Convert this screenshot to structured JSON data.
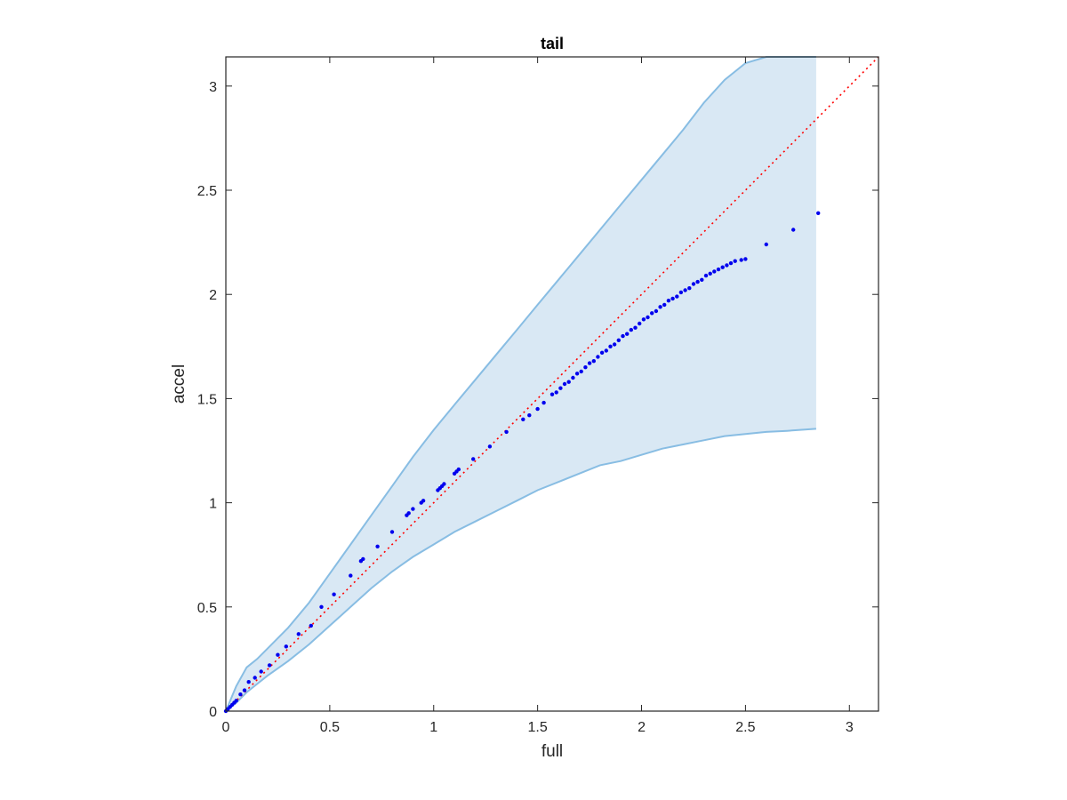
{
  "chart_data": {
    "type": "scatter",
    "title": "tail",
    "xlabel": "full",
    "ylabel": "accel",
    "xlim": [
      0,
      3.14
    ],
    "ylim": [
      0,
      3.14
    ],
    "xticks": [
      "0",
      "0.5",
      "1",
      "1.5",
      "2",
      "2.5",
      "3"
    ],
    "yticks": [
      "0",
      "0.5",
      "1",
      "1.5",
      "2",
      "2.5",
      "3"
    ],
    "grid": false,
    "legend": "none",
    "colors": {
      "band_fill": "#d9e8f4",
      "band_edge": "#88bde3",
      "points": "#0000ee",
      "reference": "#ff0000",
      "axes": "#262626"
    },
    "reference_line": {
      "style": "dotted",
      "x": [
        0,
        3.14
      ],
      "y": [
        0,
        3.14
      ]
    },
    "band": {
      "name": "",
      "x": [
        0,
        0.05,
        0.1,
        0.15,
        0.2,
        0.3,
        0.4,
        0.5,
        0.6,
        0.7,
        0.8,
        0.9,
        1.0,
        1.1,
        1.2,
        1.3,
        1.4,
        1.5,
        1.6,
        1.7,
        1.8,
        1.9,
        2.0,
        2.1,
        2.2,
        2.3,
        2.4,
        2.5,
        2.6,
        2.7,
        2.84
      ],
      "upper": [
        0,
        0.12,
        0.21,
        0.25,
        0.3,
        0.4,
        0.52,
        0.66,
        0.8,
        0.94,
        1.08,
        1.22,
        1.35,
        1.47,
        1.59,
        1.71,
        1.83,
        1.95,
        2.07,
        2.19,
        2.31,
        2.43,
        2.55,
        2.67,
        2.79,
        2.92,
        3.03,
        3.11,
        3.14,
        3.14,
        3.14
      ],
      "lower": [
        0,
        0.04,
        0.09,
        0.13,
        0.17,
        0.24,
        0.32,
        0.41,
        0.5,
        0.59,
        0.67,
        0.74,
        0.8,
        0.86,
        0.91,
        0.96,
        1.01,
        1.06,
        1.1,
        1.14,
        1.18,
        1.2,
        1.23,
        1.26,
        1.28,
        1.3,
        1.32,
        1.33,
        1.34,
        1.345,
        1.355
      ]
    },
    "series": [
      {
        "name": "",
        "x": [
          0.0,
          0.01,
          0.02,
          0.03,
          0.04,
          0.05,
          0.07,
          0.09,
          0.11,
          0.14,
          0.17,
          0.21,
          0.25,
          0.29,
          0.35,
          0.41,
          0.46,
          0.52,
          0.6,
          0.65,
          0.66,
          0.73,
          0.8,
          0.87,
          0.88,
          0.9,
          0.94,
          0.95,
          1.02,
          1.03,
          1.04,
          1.05,
          1.1,
          1.11,
          1.12,
          1.19,
          1.27,
          1.35,
          1.43,
          1.46,
          1.5,
          1.53,
          1.57,
          1.59,
          1.61,
          1.63,
          1.65,
          1.67,
          1.69,
          1.71,
          1.73,
          1.75,
          1.77,
          1.79,
          1.81,
          1.83,
          1.85,
          1.87,
          1.89,
          1.91,
          1.93,
          1.95,
          1.97,
          1.99,
          2.01,
          2.03,
          2.05,
          2.07,
          2.09,
          2.11,
          2.13,
          2.15,
          2.17,
          2.19,
          2.21,
          2.23,
          2.25,
          2.27,
          2.29,
          2.31,
          2.33,
          2.35,
          2.37,
          2.39,
          2.41,
          2.43,
          2.45,
          2.48,
          2.5,
          2.6,
          2.73,
          2.85
        ],
        "y": [
          0.0,
          0.01,
          0.02,
          0.03,
          0.04,
          0.05,
          0.08,
          0.1,
          0.14,
          0.16,
          0.19,
          0.22,
          0.27,
          0.31,
          0.37,
          0.41,
          0.5,
          0.56,
          0.65,
          0.72,
          0.73,
          0.79,
          0.86,
          0.94,
          0.95,
          0.97,
          1.0,
          1.01,
          1.06,
          1.07,
          1.08,
          1.09,
          1.14,
          1.15,
          1.16,
          1.21,
          1.27,
          1.34,
          1.4,
          1.42,
          1.45,
          1.48,
          1.52,
          1.53,
          1.55,
          1.57,
          1.58,
          1.6,
          1.62,
          1.63,
          1.65,
          1.67,
          1.68,
          1.7,
          1.72,
          1.73,
          1.75,
          1.76,
          1.78,
          1.8,
          1.81,
          1.83,
          1.84,
          1.86,
          1.88,
          1.89,
          1.91,
          1.92,
          1.94,
          1.95,
          1.97,
          1.98,
          1.99,
          2.01,
          2.02,
          2.03,
          2.05,
          2.06,
          2.07,
          2.09,
          2.1,
          2.11,
          2.12,
          2.13,
          2.14,
          2.15,
          2.16,
          2.165,
          2.17,
          2.24,
          2.31,
          2.39
        ]
      }
    ]
  }
}
